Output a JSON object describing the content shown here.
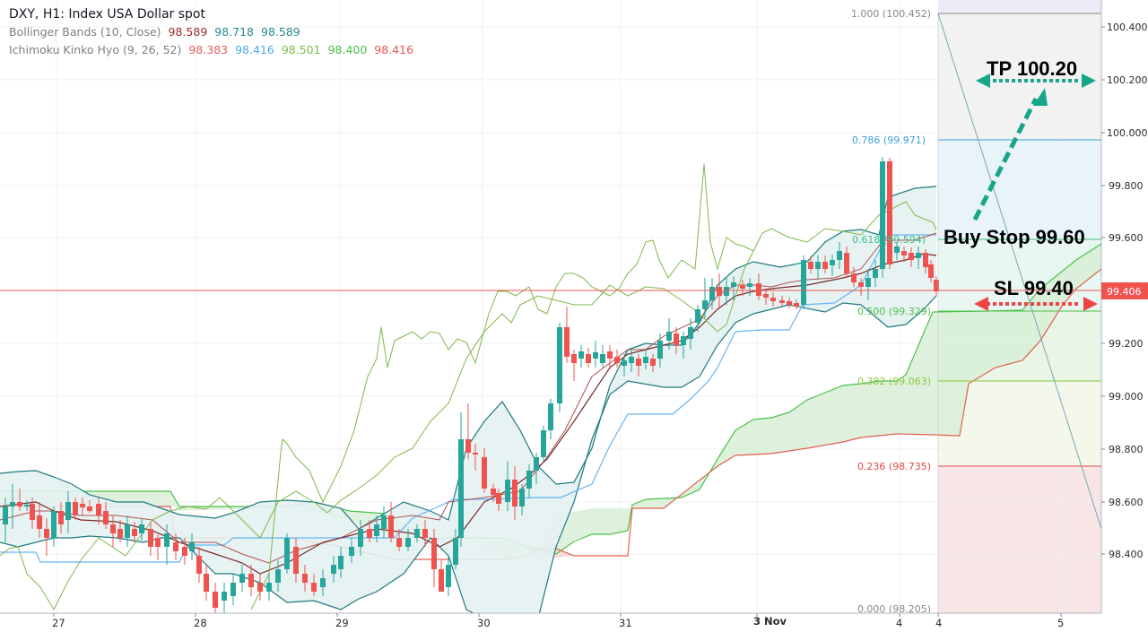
{
  "header": {
    "title": "DXY, H1: Index USA Dollar spot",
    "bollinger": {
      "label": "Bollinger Bands (10, Close)",
      "values": [
        "98.589",
        "98.718",
        "98.589"
      ],
      "colors": [
        "#9c2b2b",
        "#2a8a8a",
        "#2a8a8a"
      ]
    },
    "ichimoku": {
      "label": "Ichimoku Kinko Hyo (9, 26, 52)",
      "values": [
        "98.383",
        "98.416",
        "98.501",
        "98.400",
        "98.416"
      ],
      "colors": [
        "#e06060",
        "#4fa8f0",
        "#7fb84a",
        "#4cc04c",
        "#ef5350"
      ]
    }
  },
  "price_axis": {
    "ticks": [
      "100.400",
      "100.200",
      "100.000",
      "99.800",
      "99.600",
      "99.200",
      "99.000",
      "98.800",
      "98.600",
      "98.400"
    ],
    "current_price": "99.406",
    "current_price_color": "#ef5350"
  },
  "time_axis": {
    "ticks": [
      "27",
      "28",
      "29",
      "30",
      "31",
      "3 Nov",
      "4",
      "4",
      "5"
    ]
  },
  "fibonacci": {
    "levels": [
      {
        "label": "1.000 (100.452)",
        "color": "#888888"
      },
      {
        "label": "0.786 (99.971)",
        "color": "#3ea0d8"
      },
      {
        "label": "0.618 (99.594)",
        "color": "#3cc08a"
      },
      {
        "label": "0.500 (99.329)",
        "color": "#4cc04c"
      },
      {
        "label": "0.382 (99.063)",
        "color": "#8cc83c"
      },
      {
        "label": "0.236 (98.735)",
        "color": "#e04848"
      },
      {
        "label": "0.000 (98.205)",
        "color": "#888888"
      }
    ]
  },
  "annotations": {
    "tp": "TP 100.20",
    "buy_stop": "Buy Stop 99.60",
    "sl": "SL 99.40"
  },
  "colors": {
    "bull": "#26a69a",
    "bear": "#ef5350",
    "bb_band": "#1f7a80",
    "bb_fill": "#e4f1f1",
    "tenkan": "#a03030",
    "kijun": "#64b5f6",
    "chikou": "#7fb84a",
    "span_a": "#4cc04c",
    "span_b": "#e06050",
    "tp_arrow": "#17a589",
    "sl_arrow": "#ef4444"
  },
  "chart_data": {
    "type": "candlestick",
    "title": "DXY, H1: Index USA Dollar spot",
    "xlabel": "",
    "ylabel": "",
    "ylim": [
      98.2,
      100.45
    ],
    "x_ticks": [
      "27",
      "28",
      "29",
      "30",
      "31",
      "3 Nov",
      "4",
      "4",
      "5"
    ],
    "y_ticks": [
      98.4,
      98.6,
      98.8,
      99.0,
      99.2,
      99.4,
      99.6,
      99.8,
      100.0,
      100.2,
      100.4
    ],
    "last_price": 99.406,
    "indicators": {
      "bollinger_bands_10_close": [
        98.589,
        98.718,
        98.589
      ],
      "ichimoku_9_26_52": [
        98.383,
        98.416,
        98.501,
        98.4,
        98.416
      ]
    },
    "fibonacci_retracement": [
      {
        "ratio": 1.0,
        "price": 100.452
      },
      {
        "ratio": 0.786,
        "price": 99.971
      },
      {
        "ratio": 0.618,
        "price": 99.594
      },
      {
        "ratio": 0.5,
        "price": 99.329
      },
      {
        "ratio": 0.382,
        "price": 99.063
      },
      {
        "ratio": 0.236,
        "price": 98.735
      },
      {
        "ratio": 0.0,
        "price": 98.205
      }
    ],
    "trade_setup": {
      "take_profit": 100.2,
      "buy_stop": 99.6,
      "stop_loss": 99.4
    },
    "approx_close_path": [
      {
        "x": "27",
        "close": 98.58
      },
      {
        "x": "28",
        "close": 98.45
      },
      {
        "x": "29",
        "close": 98.3
      },
      {
        "x": "30",
        "close": 98.6
      },
      {
        "x": "31",
        "close": 99.15
      },
      {
        "x": "3 Nov",
        "close": 99.4
      },
      {
        "x": "4",
        "close": 99.41
      }
    ]
  }
}
